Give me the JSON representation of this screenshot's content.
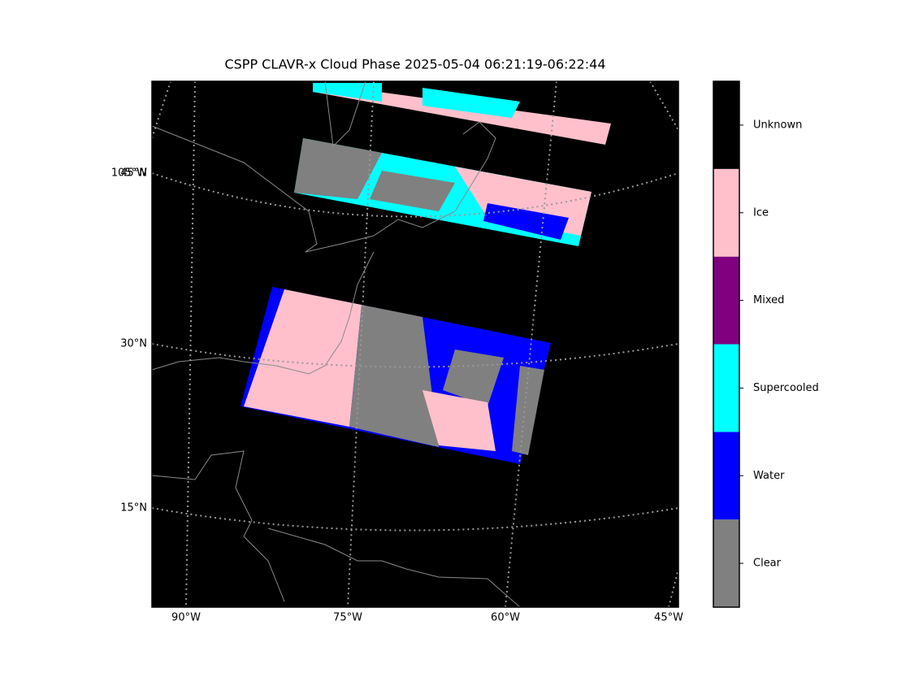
{
  "title": "CSPP CLAVR-x Cloud Phase 2025-05-04 06:21:19-06:22:44",
  "map": {
    "lon_labels": [
      "90°W",
      "75°W",
      "60°W",
      "45°W"
    ],
    "lat_labels": [
      "45°N",
      "30°N",
      "15°N"
    ],
    "overlap_label": "105°W"
  },
  "colorbar": {
    "classes": [
      {
        "label": "Clear",
        "color": "#808080"
      },
      {
        "label": "Water",
        "color": "#0000ff"
      },
      {
        "label": "Supercooled",
        "color": "#00ffff"
      },
      {
        "label": "Mixed",
        "color": "#800080"
      },
      {
        "label": "Ice",
        "color": "#ffc0cb"
      },
      {
        "label": "Unknown",
        "color": "#000000"
      }
    ]
  }
}
